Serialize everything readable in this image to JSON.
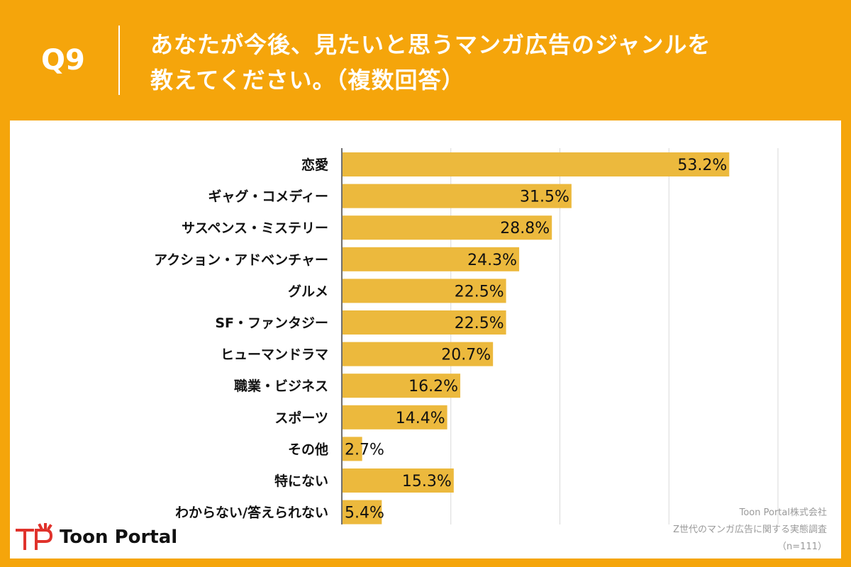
{
  "header": {
    "question_label": "Q9",
    "title_line1": "あなたが今後、見たいと思うマンガ広告のジャンルを",
    "title_line2": "教えてください。（複数回答）"
  },
  "footer": {
    "company": "Toon Portal株式会社",
    "survey": "Z世代のマンガ広告に関する実態調査",
    "sample": "（n=111）",
    "logo_text": "Toon Portal"
  },
  "colors": {
    "background": "#f5a50b",
    "bar": "#ecb93d",
    "grid": "#d9d9d9"
  },
  "chart_data": {
    "type": "bar",
    "orientation": "horizontal",
    "categories": [
      "恋愛",
      "ギャグ・コメディー",
      "サスペンス・ミステリー",
      "アクション・アドベンチャー",
      "グルメ",
      "SF・ファンタジー",
      "ヒューマンドラマ",
      "職業・ビジネス",
      "スポーツ",
      "その他",
      "特にない",
      "わからない/答えられない"
    ],
    "values": [
      53.2,
      31.5,
      28.8,
      24.3,
      22.5,
      22.5,
      20.7,
      16.2,
      14.4,
      2.7,
      15.3,
      5.4
    ],
    "value_labels": [
      "53.2%",
      "31.5%",
      "28.8%",
      "24.3%",
      "22.5%",
      "22.5%",
      "20.7%",
      "16.2%",
      "14.4%",
      "2.7%",
      "15.3%",
      "5.4%"
    ],
    "xlim": [
      0,
      60
    ],
    "gridlines": [
      0,
      15,
      30,
      45,
      60
    ],
    "grid": true,
    "title": "",
    "xlabel": "",
    "ylabel": ""
  }
}
